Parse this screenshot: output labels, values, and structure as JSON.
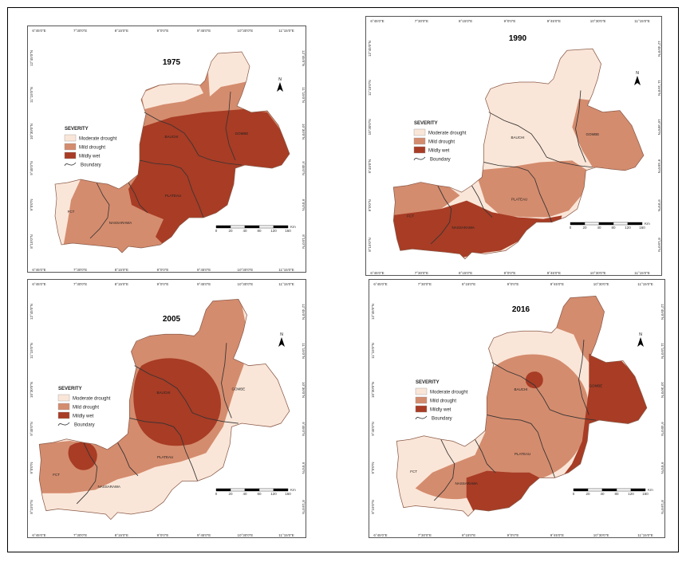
{
  "colors": {
    "moderate_drought": "#fae6d8",
    "mild_drought": "#d48c6e",
    "mildly_wet": "#a83c25",
    "boundary": "#333333"
  },
  "legend": {
    "title": "SEVERITY",
    "items": [
      {
        "label": "Moderate drought",
        "color": "#fae6d8"
      },
      {
        "label": "Mild drought",
        "color": "#d48c6e"
      },
      {
        "label": "Mildly wet",
        "color": "#a83c25"
      },
      {
        "label": "Boundary",
        "color": "#333333"
      }
    ]
  },
  "north_arrow": "N",
  "longitude_ticks": [
    "6°45'0\"E",
    "7°30'0\"E",
    "8°15'0\"E",
    "9°0'0\"E",
    "9°45'0\"E",
    "10°30'0\"E",
    "11°15'0\"E"
  ],
  "latitude_ticks": [
    "12°45'0\"N",
    "11°15'0\"N",
    "10°30'0\"N",
    "9°45'0\"N",
    "9°0'0\"N",
    "8°15'0\"N"
  ],
  "scale_bar": {
    "labels": [
      "0",
      "20",
      "40",
      "80",
      "120",
      "160"
    ],
    "unit": "Km"
  },
  "maps": [
    {
      "year": "1975",
      "labels": [
        "BAUCHI",
        "GOMBE",
        "PLATEAU",
        "FCT",
        "NASSARAWA"
      ]
    },
    {
      "year": "1990",
      "labels": [
        "BAUCHI",
        "GOMBE",
        "PLATEAU",
        "FCT",
        "NASSARAWA"
      ]
    },
    {
      "year": "2005",
      "labels": [
        "BAUCHI",
        "GOMBE",
        "PLATEAU",
        "FCT",
        "NASSARAWA"
      ]
    },
    {
      "year": "2016",
      "labels": [
        "BAUCHI",
        "GOMBE",
        "PLATEAU",
        "FCT",
        "NASSARAWA"
      ]
    }
  ]
}
